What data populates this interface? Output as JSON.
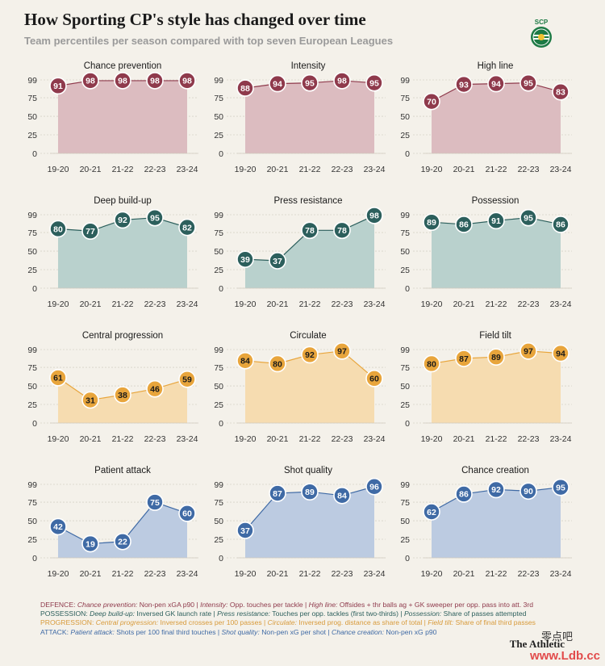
{
  "title": "How Sporting CP's style has changed over time",
  "subtitle": "Team percentiles per season compared with top seven European Leagues",
  "logo": {
    "text": "SCP",
    "icon": "sporting-lion-crest-icon"
  },
  "colors": {
    "defence_fill": "#dcbcc0",
    "defence_marker": "#8f3a4c",
    "possession_fill": "#b9d1cd",
    "possession_marker": "#2c5f5c",
    "progression_fill": "#f6dcb0",
    "progression_marker": "#e8a53c",
    "attack_fill": "#bccbe1",
    "attack_marker": "#3f6aa5"
  },
  "chart_data": [
    {
      "type": "area",
      "title": "Chance prevention",
      "group": "defence",
      "categories": [
        "19-20",
        "20-21",
        "21-22",
        "22-23",
        "23-24"
      ],
      "values": [
        91,
        98,
        98,
        98,
        98
      ],
      "yticks": [
        0,
        25,
        50,
        75,
        99
      ],
      "ylim": [
        0,
        99
      ]
    },
    {
      "type": "area",
      "title": "Intensity",
      "group": "defence",
      "categories": [
        "19-20",
        "20-21",
        "21-22",
        "22-23",
        "23-24"
      ],
      "values": [
        88,
        94,
        95,
        98,
        95
      ],
      "yticks": [
        0,
        25,
        50,
        75,
        99
      ],
      "ylim": [
        0,
        99
      ]
    },
    {
      "type": "area",
      "title": "High line",
      "group": "defence",
      "categories": [
        "19-20",
        "20-21",
        "21-22",
        "22-23",
        "23-24"
      ],
      "values": [
        70,
        93,
        94,
        95,
        83
      ],
      "yticks": [
        0,
        25,
        50,
        75,
        99
      ],
      "ylim": [
        0,
        99
      ]
    },
    {
      "type": "area",
      "title": "Deep build-up",
      "group": "possession",
      "categories": [
        "19-20",
        "20-21",
        "21-22",
        "22-23",
        "23-24"
      ],
      "values": [
        80,
        77,
        92,
        95,
        82
      ],
      "yticks": [
        0,
        25,
        50,
        75,
        99
      ],
      "ylim": [
        0,
        99
      ]
    },
    {
      "type": "area",
      "title": "Press resistance",
      "group": "possession",
      "categories": [
        "19-20",
        "20-21",
        "21-22",
        "22-23",
        "23-24"
      ],
      "values": [
        39,
        37,
        78,
        78,
        98
      ],
      "yticks": [
        0,
        25,
        50,
        75,
        99
      ],
      "ylim": [
        0,
        99
      ]
    },
    {
      "type": "area",
      "title": "Possession",
      "group": "possession",
      "categories": [
        "19-20",
        "20-21",
        "21-22",
        "22-23",
        "23-24"
      ],
      "values": [
        89,
        86,
        91,
        95,
        86
      ],
      "yticks": [
        0,
        25,
        50,
        75,
        99
      ],
      "ylim": [
        0,
        99
      ]
    },
    {
      "type": "area",
      "title": "Central progression",
      "group": "progression",
      "categories": [
        "19-20",
        "20-21",
        "21-22",
        "22-23",
        "23-24"
      ],
      "values": [
        61,
        31,
        38,
        46,
        59
      ],
      "yticks": [
        0,
        25,
        50,
        75,
        99
      ],
      "ylim": [
        0,
        99
      ]
    },
    {
      "type": "area",
      "title": "Circulate",
      "group": "progression",
      "categories": [
        "19-20",
        "20-21",
        "21-22",
        "22-23",
        "23-24"
      ],
      "values": [
        84,
        80,
        92,
        97,
        60
      ],
      "yticks": [
        0,
        25,
        50,
        75,
        99
      ],
      "ylim": [
        0,
        99
      ]
    },
    {
      "type": "area",
      "title": "Field tilt",
      "group": "progression",
      "categories": [
        "19-20",
        "20-21",
        "21-22",
        "22-23",
        "23-24"
      ],
      "values": [
        80,
        87,
        89,
        97,
        94
      ],
      "yticks": [
        0,
        25,
        50,
        75,
        99
      ],
      "ylim": [
        0,
        99
      ]
    },
    {
      "type": "area",
      "title": "Patient attack",
      "group": "attack",
      "categories": [
        "19-20",
        "20-21",
        "21-22",
        "22-23",
        "23-24"
      ],
      "values": [
        42,
        19,
        22,
        75,
        60
      ],
      "yticks": [
        0,
        25,
        50,
        75,
        99
      ],
      "ylim": [
        0,
        99
      ]
    },
    {
      "type": "area",
      "title": "Shot quality",
      "group": "attack",
      "categories": [
        "19-20",
        "20-21",
        "21-22",
        "22-23",
        "23-24"
      ],
      "values": [
        37,
        87,
        89,
        84,
        96
      ],
      "yticks": [
        0,
        25,
        50,
        75,
        99
      ],
      "ylim": [
        0,
        99
      ]
    },
    {
      "type": "area",
      "title": "Chance creation",
      "group": "attack",
      "categories": [
        "19-20",
        "20-21",
        "21-22",
        "22-23",
        "23-24"
      ],
      "values": [
        62,
        86,
        92,
        90,
        95
      ],
      "yticks": [
        0,
        25,
        50,
        75,
        99
      ],
      "ylim": [
        0,
        99
      ]
    }
  ],
  "footer": {
    "defence": {
      "group": "DEFENCE: ",
      "m1": "Chance prevention:",
      "d1": " Non-pen xGA p90 | ",
      "m2": "Intensity:",
      "d2": " Opp. touches per tackle | ",
      "m3": "High line:",
      "d3": " Offsides + thr balls ag + GK sweeper per opp. pass into att. 3rd"
    },
    "possession": {
      "group": "POSSESSION: ",
      "m1": "Deep build-up:",
      "d1": " Inversed GK launch rate | ",
      "m2": "Press resistance:",
      "d2": " Touches per opp. tackles (first two-thirds) | ",
      "m3": "Possession:",
      "d3": " Share of passes attempted"
    },
    "progression": {
      "group": "PROGRESSION: ",
      "m1": "Central progression:",
      "d1": " Inversed crosses per 100 passes | ",
      "m2": "Circulate:",
      "d2": " Inversed prog. distance as share of total | ",
      "m3": "Field tilt:",
      "d3": " Share of final third passes"
    },
    "attack": {
      "group": "ATTACK: ",
      "m1": "Patient attack:",
      "d1": " Shots per 100 final third touches | ",
      "m2": "Shot quality:",
      "d2": " Non-pen xG per shot | ",
      "m3": "Chance creation:",
      "d3": " Non-pen xG p90"
    }
  },
  "watermark": {
    "brand": "The Athletic",
    "cn": "零点吧",
    "site": "www.Ldb.cc"
  }
}
